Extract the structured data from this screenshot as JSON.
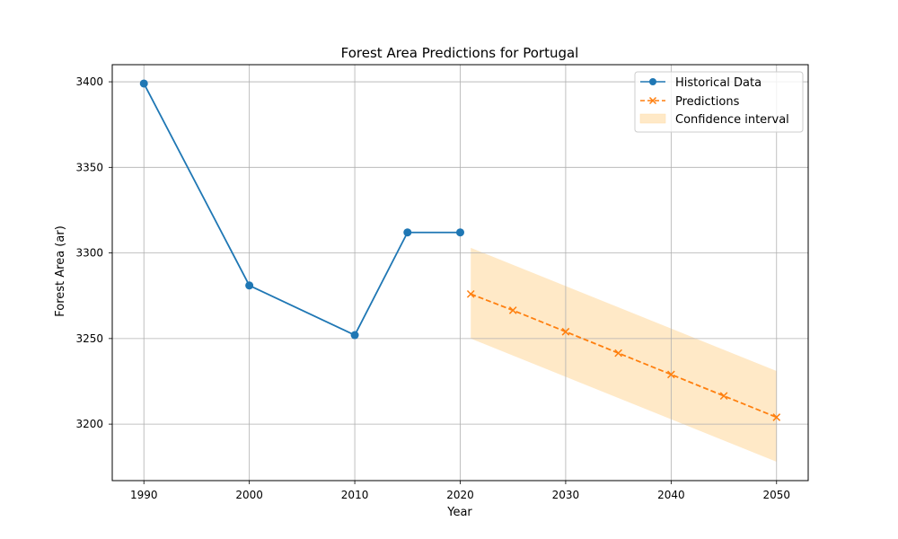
{
  "chart_data": {
    "type": "line",
    "title": "Forest Area Predictions for Portugal",
    "xlabel": "Year",
    "ylabel": "Forest Area (ar)",
    "xlim": [
      1987,
      2053
    ],
    "ylim": [
      3167,
      3410
    ],
    "xticks": [
      1990,
      2000,
      2010,
      2020,
      2030,
      2040,
      2050
    ],
    "yticks": [
      3200,
      3250,
      3300,
      3350,
      3400
    ],
    "grid": true,
    "legend_position": "top-right",
    "series": [
      {
        "name": "Historical Data",
        "style": "solid",
        "marker": "circle",
        "color": "#1f77b4",
        "x": [
          1990,
          2000,
          2010,
          2015,
          2020
        ],
        "y": [
          3399,
          3281,
          3252,
          3312,
          3312
        ]
      },
      {
        "name": "Predictions",
        "style": "dashed",
        "marker": "x",
        "color": "#ff7f0e",
        "x": [
          2021,
          2025,
          2030,
          2035,
          2040,
          2045,
          2050
        ],
        "y": [
          3276,
          3266.5,
          3254,
          3241.5,
          3229,
          3216.5,
          3204
        ]
      }
    ],
    "band": {
      "name": "Confidence interval",
      "color": "#ffe9c7",
      "x": [
        2021,
        2050
      ],
      "lower": [
        3250,
        3178
      ],
      "upper": [
        3303,
        3231
      ]
    }
  }
}
